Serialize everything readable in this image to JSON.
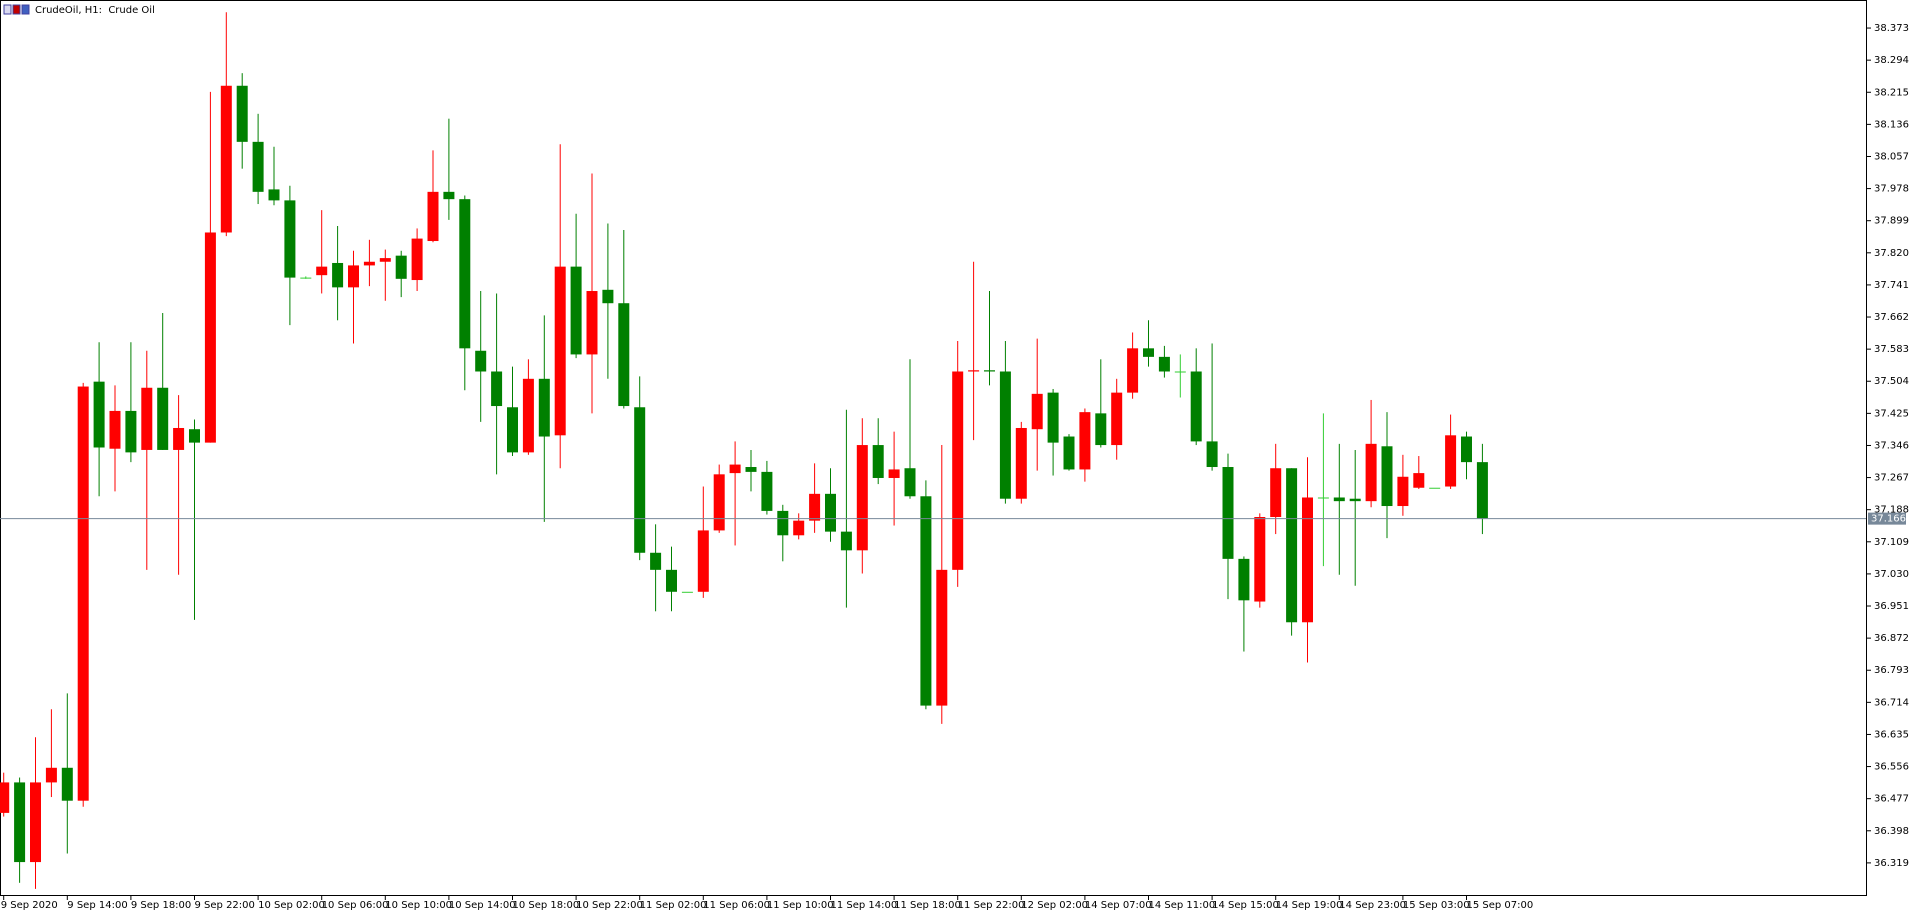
{
  "chart_data": {
    "type": "candlestick",
    "title": "CrudeOil, H1:  Crude Oil",
    "categories": [
      "9 Sep 2020",
      null,
      null,
      null,
      "9 Sep 14:00",
      null,
      null,
      null,
      "9 Sep 18:00",
      null,
      null,
      null,
      "9 Sep 22:00",
      null,
      null,
      null,
      "10 Sep 02:00",
      null,
      null,
      null,
      "10 Sep 06:00",
      null,
      null,
      null,
      "10 Sep 10:00",
      null,
      null,
      null,
      "10 Sep 14:00",
      null,
      null,
      null,
      "10 Sep 18:00",
      null,
      null,
      null,
      "10 Sep 22:00",
      null,
      null,
      null,
      "11 Sep 02:00",
      null,
      null,
      null,
      "11 Sep 06:00",
      null,
      null,
      null,
      "11 Sep 10:00",
      null,
      null,
      null,
      "11 Sep 14:00",
      null,
      null,
      null,
      "11 Sep 18:00",
      null,
      null,
      null,
      "11 Sep 22:00",
      null,
      null,
      null,
      "12 Sep 02:00",
      null,
      null,
      null,
      "14 Sep 07:00",
      null,
      null,
      null,
      "14 Sep 11:00",
      null,
      null,
      null,
      "14 Sep 15:00",
      null,
      null,
      null,
      "14 Sep 19:00",
      null,
      null,
      null,
      "14 Sep 23:00",
      null,
      null,
      null,
      "15 Sep 03:00",
      null,
      null,
      null,
      "15 Sep 07:00",
      null
    ],
    "open": [
      36.442,
      36.517,
      36.321,
      36.517,
      36.553,
      36.472,
      37.503,
      37.338,
      37.431,
      37.335,
      37.488,
      37.335,
      37.386,
      37.353,
      37.87,
      38.231,
      38.093,
      37.976,
      37.949,
      37.759,
      37.765,
      37.795,
      37.735,
      37.789,
      37.798,
      37.813,
      37.753,
      37.849,
      37.97,
      37.952,
      37.579,
      37.528,
      37.44,
      37.329,
      37.51,
      37.371,
      37.786,
      37.57,
      37.729,
      37.696,
      37.44,
      37.082,
      37.04,
      36.986,
      36.986,
      37.137,
      37.278,
      37.293,
      37.281,
      37.185,
      37.125,
      37.161,
      37.227,
      37.134,
      37.088,
      37.347,
      37.266,
      37.29,
      37.221,
      36.706,
      37.04,
      37.528,
      37.531,
      37.528,
      37.215,
      37.386,
      37.476,
      37.368,
      37.287,
      37.425,
      37.347,
      37.476,
      37.585,
      37.564,
      37.528,
      37.528,
      37.356,
      37.293,
      37.067,
      36.962,
      37.17,
      37.29,
      36.911,
      37.218,
      37.218,
      37.215,
      37.209,
      37.344,
      37.197,
      37.242,
      37.242,
      37.245,
      37.368,
      37.305
    ],
    "high": [
      36.541,
      36.529,
      36.628,
      36.697,
      36.736,
      37.5,
      37.6,
      37.494,
      37.6,
      37.579,
      37.672,
      37.47,
      37.41,
      38.216,
      38.412,
      38.262,
      38.162,
      38.081,
      37.985,
      37.762,
      37.925,
      37.886,
      37.825,
      37.852,
      37.828,
      37.825,
      37.88,
      38.072,
      38.15,
      37.961,
      37.726,
      37.72,
      37.54,
      37.558,
      37.666,
      38.087,
      37.916,
      38.015,
      37.892,
      37.876,
      37.516,
      37.152,
      37.097,
      36.986,
      37.245,
      37.299,
      37.356,
      37.335,
      37.308,
      37.2,
      37.179,
      37.302,
      37.29,
      37.434,
      37.413,
      37.413,
      37.38,
      37.558,
      37.26,
      37.347,
      37.603,
      37.798,
      37.726,
      37.603,
      37.404,
      37.609,
      37.485,
      37.374,
      37.437,
      37.558,
      37.51,
      37.624,
      37.654,
      37.591,
      37.57,
      37.585,
      37.597,
      37.326,
      37.073,
      37.179,
      37.35,
      37.29,
      37.317,
      37.425,
      37.35,
      37.335,
      37.458,
      37.428,
      37.323,
      37.32,
      37.242,
      37.422,
      37.38,
      37.35
    ],
    "low": [
      36.433,
      36.27,
      36.255,
      36.481,
      36.342,
      36.457,
      37.221,
      37.233,
      37.305,
      37.04,
      37.335,
      37.028,
      36.917,
      37.353,
      37.861,
      38.027,
      37.94,
      37.937,
      37.642,
      37.756,
      37.72,
      37.654,
      37.597,
      37.738,
      37.702,
      37.711,
      37.726,
      37.846,
      37.901,
      37.482,
      37.404,
      37.275,
      37.32,
      37.323,
      37.158,
      37.29,
      37.561,
      37.425,
      37.51,
      37.437,
      37.064,
      36.938,
      36.938,
      36.986,
      36.971,
      37.131,
      37.1,
      37.233,
      37.176,
      37.061,
      37.115,
      37.131,
      37.109,
      36.947,
      37.031,
      37.251,
      37.149,
      37.215,
      36.697,
      36.661,
      36.998,
      37.359,
      37.494,
      37.203,
      37.203,
      37.284,
      37.272,
      37.284,
      37.257,
      37.341,
      37.311,
      37.461,
      37.54,
      37.513,
      37.464,
      37.347,
      37.284,
      36.968,
      36.839,
      36.947,
      37.128,
      36.878,
      36.812,
      37.049,
      37.028,
      37.001,
      37.194,
      37.118,
      37.173,
      37.239,
      37.242,
      37.239,
      37.263,
      37.128
    ],
    "close": [
      36.517,
      36.321,
      36.517,
      36.553,
      36.472,
      37.491,
      37.341,
      37.431,
      37.329,
      37.488,
      37.335,
      37.389,
      37.353,
      37.87,
      38.231,
      38.093,
      37.97,
      37.949,
      37.759,
      37.759,
      37.786,
      37.735,
      37.789,
      37.798,
      37.807,
      37.756,
      37.855,
      37.97,
      37.952,
      37.585,
      37.528,
      37.443,
      37.329,
      37.51,
      37.368,
      37.786,
      37.57,
      37.726,
      37.696,
      37.443,
      37.082,
      37.04,
      36.986,
      36.986,
      37.137,
      37.275,
      37.299,
      37.281,
      37.185,
      37.125,
      37.161,
      37.227,
      37.134,
      37.088,
      37.347,
      37.266,
      37.287,
      37.221,
      36.706,
      37.04,
      37.528,
      37.531,
      37.528,
      37.215,
      37.389,
      37.473,
      37.353,
      37.287,
      37.428,
      37.347,
      37.476,
      37.585,
      37.564,
      37.528,
      37.528,
      37.356,
      37.293,
      37.067,
      36.965,
      37.17,
      37.29,
      36.911,
      37.218,
      37.218,
      37.209,
      37.209,
      37.35,
      37.197,
      37.269,
      37.278,
      37.242,
      37.371,
      37.305,
      37.167
    ],
    "up_color": "#ff0000",
    "down_color": "#008000",
    "doji_color": "#32cd32",
    "ylim": [
      36.24,
      38.442
    ],
    "yticks": [
      38.373,
      38.294,
      38.215,
      38.136,
      38.057,
      37.978,
      37.899,
      {
        "value": 37.82,
        "label": "37.820"
      },
      37.741,
      37.662,
      37.583,
      37.504,
      37.425,
      37.346,
      37.267,
      37.188,
      37.109,
      {
        "value": 37.03,
        "label": "37.030"
      },
      36.951,
      36.872,
      36.793,
      36.714,
      36.635,
      36.556,
      36.477,
      36.398,
      36.319
    ],
    "current_price": 37.166,
    "grid": false
  }
}
